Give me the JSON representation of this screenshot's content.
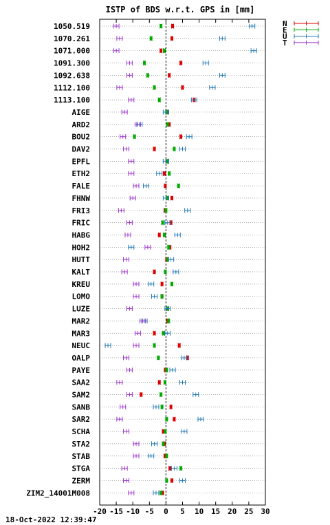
{
  "chart_data": {
    "type": "scatter",
    "title": "ISTP of BDS w.r.t. GPS in [mm]",
    "timestamp": "18-Oct-2022 12:39:47",
    "xlim": [
      -20,
      30
    ],
    "xticks": [
      -20,
      -15,
      -10,
      -5,
      0,
      5,
      10,
      15,
      20,
      25,
      30
    ],
    "grid": true,
    "legend_position": "top-right",
    "series_meta": [
      {
        "name": "N",
        "color": "#dd0000"
      },
      {
        "name": "E",
        "color": "#00aa00"
      },
      {
        "name": "U",
        "color": "#1f77b4"
      },
      {
        "name": "T",
        "color": "#9932cc"
      }
    ],
    "categories": [
      "1050.519",
      "1070.261",
      "1071.000",
      "1091.300",
      "1092.638",
      "1112.100",
      "1113.100",
      "AIGE",
      "ARD2",
      "BOU2",
      "DAV2",
      "EPFL",
      "ETH2",
      "FALE",
      "FHNW",
      "FRI3",
      "FRIC",
      "HABG",
      "HOH2",
      "HUTT",
      "KALT",
      "KREU",
      "LOMO",
      "LUZE",
      "MAR2",
      "MAR3",
      "NEUC",
      "OALP",
      "PAYE",
      "SAA2",
      "SAM2",
      "SANB",
      "SAR2",
      "SCHA",
      "STA2",
      "STAB",
      "STGA",
      "ZERM",
      "ZIM2_14001M008"
    ],
    "series": [
      {
        "name": "N",
        "values": [
          2,
          1.8,
          -1.5,
          4.5,
          1,
          5,
          8.5,
          0.5,
          1,
          4.5,
          -3.5,
          0.3,
          -0.5,
          -0.2,
          1.8,
          -0.3,
          1.5,
          -2,
          1.2,
          0.2,
          -3.5,
          -1.2,
          -1.2,
          0.5,
          0.5,
          -3.5,
          4,
          6.5,
          -0.2,
          -2,
          -7.5,
          1.5,
          2.5,
          -0.8,
          -0.5,
          -0.3,
          1.2,
          1.8,
          -1
        ]
      },
      {
        "name": "E",
        "values": [
          -1.5,
          -4.5,
          -0.5,
          -6.5,
          -5.5,
          -3.5,
          -2,
          0.2,
          0.5,
          -9.5,
          2.5,
          0.3,
          1,
          3.8,
          0.5,
          0,
          -1,
          -0.5,
          0.8,
          0.5,
          -0.2,
          1.8,
          -1.2,
          0.5,
          0.8,
          -0.8,
          -3.5,
          -2.3,
          0.2,
          -0.3,
          -1.5,
          -1.2,
          0.2,
          -0.2,
          -0.8,
          0.2,
          4.5,
          0.2,
          -1.5
        ]
      },
      {
        "name": "U",
        "values": [
          26,
          17,
          26.5,
          12,
          17,
          14,
          8.5,
          0,
          -8,
          7,
          5,
          0,
          -2,
          -6,
          0,
          6.5,
          0.5,
          3.5,
          -10.5,
          1.5,
          3,
          -4.5,
          -3.5,
          0.5,
          -6.5,
          0.5,
          -17.5,
          5.5,
          2,
          5,
          9,
          -3,
          10.5,
          5.5,
          -3.5,
          -4.5,
          2.5,
          5,
          -3
        ]
      },
      {
        "name": "T",
        "values": [
          -15,
          -14,
          -15,
          -11,
          -11,
          -14,
          -10.5,
          -12.5,
          -8.5,
          -13,
          -12,
          -10.5,
          -10.5,
          -9,
          -10,
          -13.5,
          -11,
          -11.5,
          -5.5,
          -12,
          -12.5,
          -9,
          -9,
          -11,
          -7,
          -8.5,
          -9,
          -12,
          -11,
          -14,
          -11,
          -13,
          -14,
          -12,
          -9,
          -9,
          -12.5,
          -12,
          -10.5
        ]
      }
    ]
  }
}
